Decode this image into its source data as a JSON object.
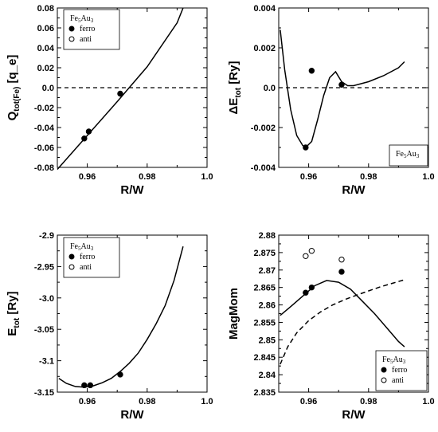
{
  "chart_data": [
    {
      "type": "line",
      "ylabel": "Q_tot(Fe) [q_e]",
      "xlabel": "R/W",
      "xlim": [
        0.95,
        1.0
      ],
      "ylim": [
        -0.08,
        0.08
      ],
      "xticks": [
        "0.96",
        "0.98",
        "1.0"
      ],
      "yticks": [
        "-0.08",
        "-0.06",
        "-0.04",
        "-0.02",
        "0.0",
        "0.02",
        "0.04",
        "0.06",
        "0.08"
      ],
      "legend": {
        "position": "top-left",
        "title": "Fe5Au3",
        "entries": [
          "ferro",
          "anti"
        ]
      },
      "reference_line": {
        "y": 0,
        "style": "dashed"
      },
      "series": [
        {
          "kind": "line",
          "x": [
            0.95,
            0.96,
            0.97,
            0.98,
            0.99,
            0.992
          ],
          "y": [
            -0.082,
            -0.048,
            -0.014,
            0.021,
            0.065,
            0.08
          ]
        },
        {
          "kind": "points",
          "marker": "filled",
          "x": [
            0.959,
            0.9605,
            0.971
          ],
          "y": [
            -0.051,
            -0.044,
            -0.006
          ]
        }
      ]
    },
    {
      "type": "line",
      "ylabel": "ΔE_tot [Ry]",
      "xlabel": "R/W",
      "xlim": [
        0.95,
        1.0
      ],
      "ylim": [
        -0.004,
        0.004
      ],
      "xticks": [
        "0.96",
        "0.98",
        "1.0"
      ],
      "yticks": [
        "-0.004",
        "-0.002",
        "0.0",
        "0.002",
        "0.004"
      ],
      "legend": {
        "position": "bottom-right",
        "title": "Fe5Au3",
        "entries": []
      },
      "reference_line": {
        "y": 0,
        "style": "dashed"
      },
      "series": [
        {
          "kind": "line",
          "x": [
            0.9505,
            0.952,
            0.954,
            0.956,
            0.958,
            0.959,
            0.961,
            0.963,
            0.965,
            0.967,
            0.969,
            0.971,
            0.973,
            0.975,
            0.98,
            0.985,
            0.99,
            0.992
          ],
          "y": [
            0.0029,
            0.0009,
            -0.0011,
            -0.0024,
            -0.0029,
            -0.003,
            -0.0027,
            -0.0016,
            -0.0004,
            0.0005,
            0.0008,
            0.0003,
            0.0001,
            0.0001,
            0.0003,
            0.0006,
            0.001,
            0.0013
          ]
        },
        {
          "kind": "points",
          "marker": "filled",
          "x": [
            0.959,
            0.961,
            0.971
          ],
          "y": [
            -0.003,
            0.00085,
            0.00015
          ]
        }
      ]
    },
    {
      "type": "line",
      "ylabel": "E_tot [Ry]",
      "xlabel": "R/W",
      "xlim": [
        0.95,
        1.0
      ],
      "ylim": [
        -3.15,
        -2.9
      ],
      "xticks": [
        "0.96",
        "0.98",
        "1.0"
      ],
      "yticks": [
        "-3.15",
        "-3.1",
        "-3.05",
        "-3.0",
        "-2.95",
        "-2.9"
      ],
      "legend": {
        "position": "top-left",
        "title": "Fe5Au3",
        "entries": [
          "ferro",
          "anti"
        ]
      },
      "series": [
        {
          "kind": "line",
          "x": [
            0.9505,
            0.953,
            0.956,
            0.959,
            0.962,
            0.965,
            0.968,
            0.971,
            0.974,
            0.977,
            0.98,
            0.983,
            0.986,
            0.989,
            0.992
          ],
          "y": [
            -3.128,
            -3.136,
            -3.141,
            -3.142,
            -3.14,
            -3.135,
            -3.128,
            -3.117,
            -3.104,
            -3.088,
            -3.066,
            -3.041,
            -3.012,
            -2.972,
            -2.918
          ]
        },
        {
          "kind": "points",
          "marker": "filled",
          "x": [
            0.959,
            0.961,
            0.971
          ],
          "y": [
            -3.139,
            -3.139,
            -3.122
          ]
        }
      ]
    },
    {
      "type": "line",
      "ylabel": "MagMom",
      "xlabel": "R/W",
      "xlim": [
        0.95,
        1.0
      ],
      "ylim": [
        2.835,
        2.88
      ],
      "xticks": [
        "0.96",
        "0.98",
        "1.0"
      ],
      "yticks": [
        "2.835",
        "2.84",
        "2.845",
        "2.85",
        "2.855",
        "2.86",
        "2.865",
        "2.87",
        "2.875",
        "2.88"
      ],
      "legend": {
        "position": "bottom-right",
        "title": "Fe5Au3",
        "entries": [
          "ferro",
          "anti"
        ]
      },
      "series": [
        {
          "kind": "line",
          "style": "solid",
          "x": [
            0.9505,
            0.954,
            0.958,
            0.962,
            0.966,
            0.97,
            0.974,
            0.978,
            0.982,
            0.986,
            0.99,
            0.992
          ],
          "y": [
            2.857,
            2.8595,
            2.8625,
            2.8655,
            2.867,
            2.8665,
            2.8645,
            2.861,
            2.8575,
            2.8535,
            2.8495,
            2.848
          ]
        },
        {
          "kind": "line",
          "style": "dashed",
          "x": [
            0.9505,
            0.953,
            0.956,
            0.96,
            0.964,
            0.968,
            0.972,
            0.976,
            0.98,
            0.984,
            0.988,
            0.992
          ],
          "y": [
            2.843,
            2.848,
            2.852,
            2.8555,
            2.858,
            2.86,
            2.8615,
            2.8628,
            2.864,
            2.8652,
            2.8662,
            2.8672
          ]
        },
        {
          "kind": "points",
          "marker": "filled",
          "x": [
            0.959,
            0.961,
            0.971
          ],
          "y": [
            2.8635,
            2.865,
            2.8695
          ]
        },
        {
          "kind": "points",
          "marker": "open",
          "x": [
            0.959,
            0.961,
            0.971
          ],
          "y": [
            2.874,
            2.8755,
            2.873
          ]
        }
      ]
    }
  ]
}
